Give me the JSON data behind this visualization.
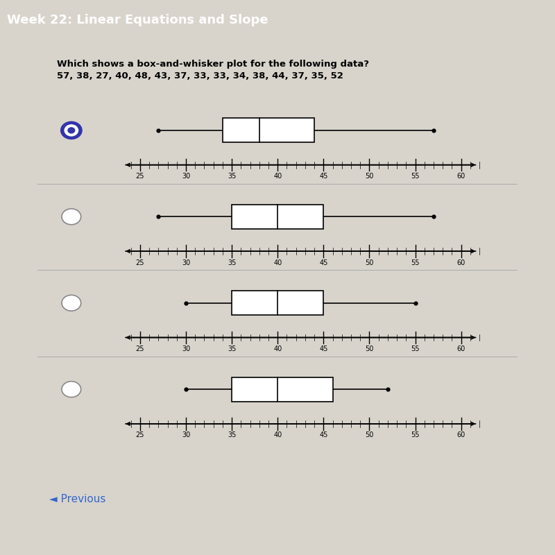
{
  "title": "Week 22: Linear Equations and Slope",
  "question_line1": "Which shows a box-and-whisker plot for the following data?",
  "question_line2": "57, 38, 27, 40, 48, 43, 37, 33, 33, 34, 38, 44, 37, 35, 52",
  "header_bg": "#7878a8",
  "bg_color": "#d8d4cc",
  "panel_bg": "#edeae0",
  "white_panel_bg": "#f5f2ec",
  "box_plots": [
    {
      "min": 27,
      "q1": 34,
      "median": 38,
      "q3": 44,
      "max": 57,
      "selected": true
    },
    {
      "min": 27,
      "q1": 35,
      "median": 40,
      "q3": 45,
      "max": 57,
      "selected": false
    },
    {
      "min": 30,
      "q1": 35,
      "median": 40,
      "q3": 45,
      "max": 55,
      "selected": false
    },
    {
      "min": 30,
      "q1": 35,
      "median": 40,
      "q3": 46,
      "max": 52,
      "selected": false
    }
  ],
  "axis_min": 23,
  "axis_max": 62,
  "tick_values": [
    25,
    30,
    35,
    40,
    45,
    50,
    55,
    60
  ],
  "selected_color": "#3333aa",
  "line_color": "black",
  "prev_text": "◄ Previous"
}
